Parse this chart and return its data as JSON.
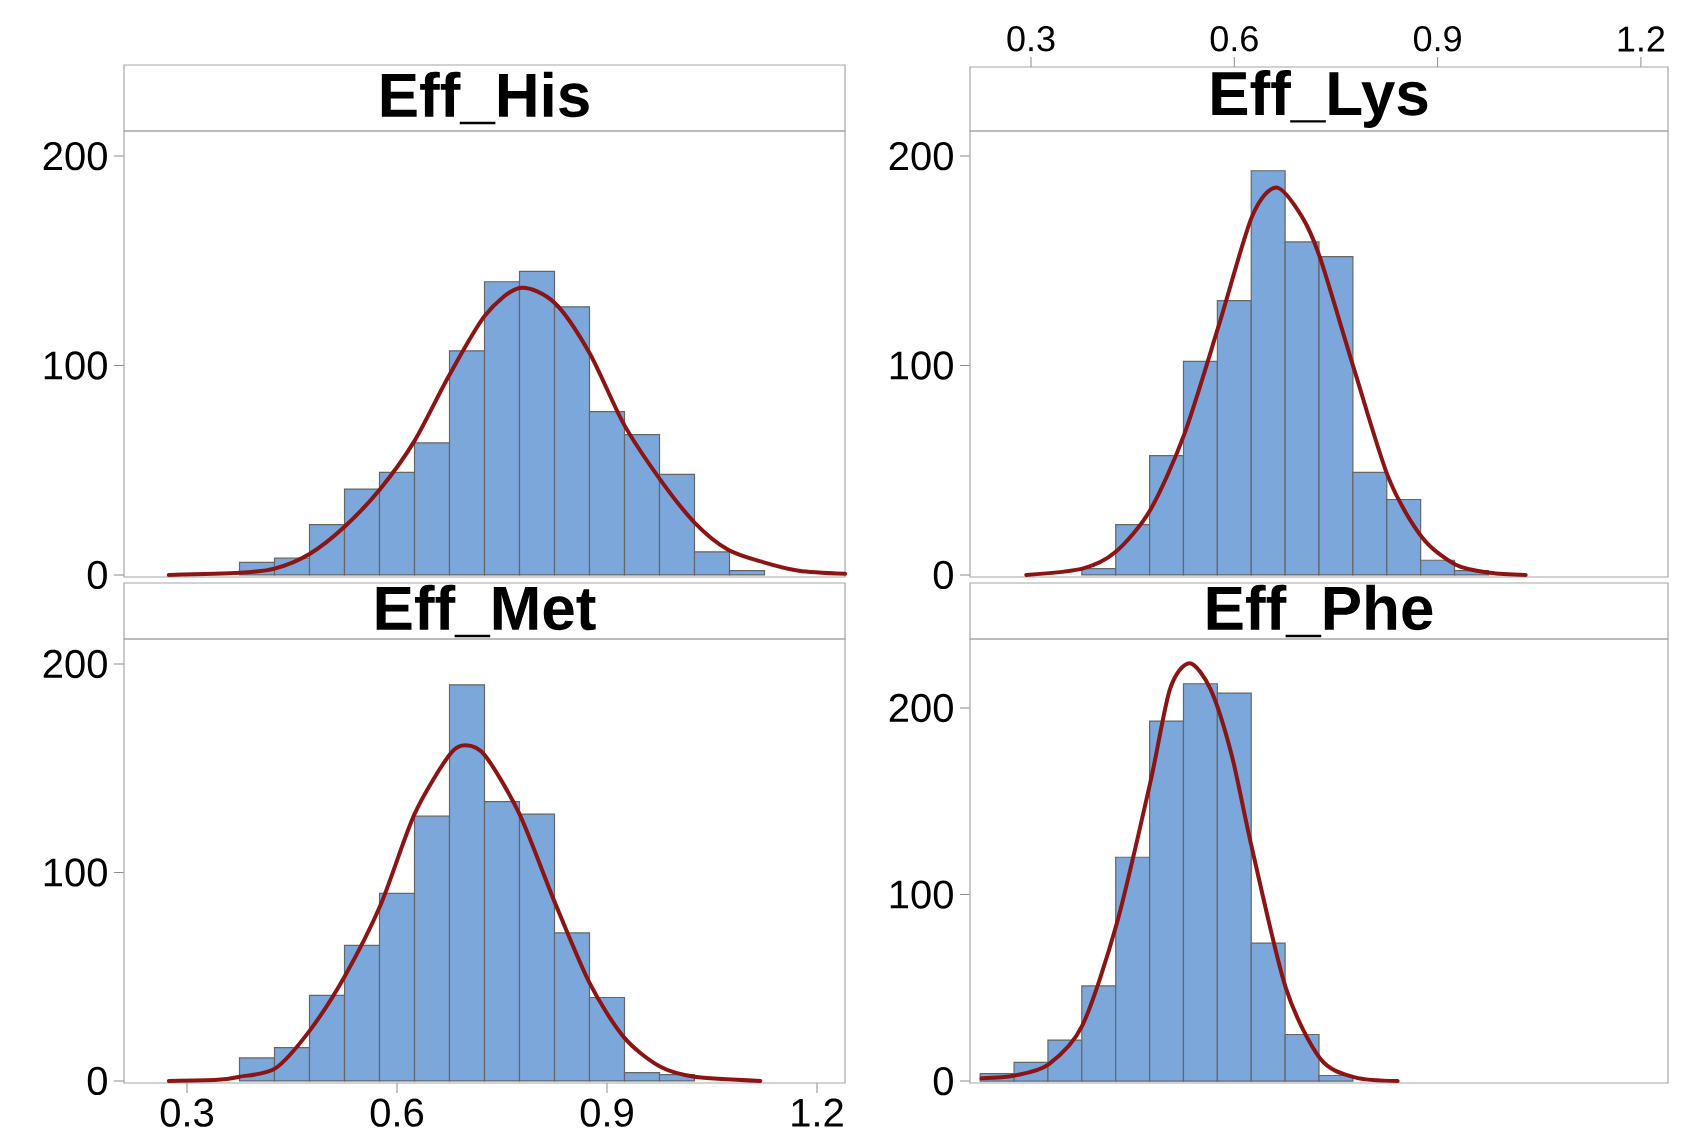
{
  "chart_data": [
    {
      "type": "histogram",
      "title": "Eff_His",
      "color": "#7ba7db",
      "tick_labels": "y",
      "bins": [
        0.375,
        0.425,
        0.475,
        0.525,
        0.575,
        0.625,
        0.675,
        0.725,
        0.775,
        0.825,
        0.875,
        0.925,
        0.975,
        1.025,
        1.075,
        1.125
      ],
      "values": [
        6,
        8,
        24,
        41,
        49,
        63,
        107,
        140,
        145,
        128,
        78,
        67,
        48,
        11,
        2
      ],
      "series": [
        {
          "type": "line",
          "color": "#8b1515",
          "x": [
            0.274,
            0.375,
            0.425,
            0.475,
            0.525,
            0.576,
            0.625,
            0.674,
            0.726,
            0.775,
            0.825,
            0.875,
            0.924,
            0.975,
            1.025,
            1.073,
            1.124,
            1.174,
            1.24
          ],
          "values": [
            0,
            1,
            3,
            10,
            23,
            41,
            64,
            95,
            124,
            137,
            130,
            106,
            72,
            46,
            25,
            12,
            6,
            2,
            0.5
          ]
        }
      ],
      "xlim": [
        0.21,
        1.24
      ],
      "ylim": [
        -1,
        212
      ],
      "yticks": [
        0,
        100,
        200
      ]
    },
    {
      "type": "histogram",
      "title": "Eff_Lys",
      "color": "#7ba7db",
      "bins": [
        0.375,
        0.425,
        0.475,
        0.525,
        0.575,
        0.625,
        0.675,
        0.725,
        0.775,
        0.825,
        0.875,
        0.925,
        0.975
      ],
      "values": [
        3,
        24,
        57,
        102,
        131,
        193,
        159,
        152,
        49,
        36,
        7,
        2
      ],
      "series": [
        {
          "type": "line",
          "color": "#8b1515",
          "x": [
            0.293,
            0.376,
            0.425,
            0.476,
            0.526,
            0.577,
            0.626,
            0.662,
            0.7,
            0.727,
            0.777,
            0.828,
            0.877,
            0.926,
            0.977,
            1.03
          ],
          "values": [
            0,
            3,
            11,
            31,
            67,
            119,
            171,
            185,
            171,
            151,
            98,
            46,
            18,
            5,
            1,
            0
          ]
        }
      ],
      "xlim": [
        0.21,
        1.24
      ],
      "x2lim": [
        0.21,
        1.24
      ],
      "x2ticks": [
        0.3,
        0.6,
        0.9,
        1.2
      ],
      "ylim": [
        -1,
        212
      ],
      "yticks": [
        0,
        100,
        200
      ]
    },
    {
      "type": "histogram",
      "title": "Eff_Met",
      "color": "#7ba7db",
      "bins": [
        0.375,
        0.425,
        0.475,
        0.525,
        0.575,
        0.625,
        0.675,
        0.725,
        0.775,
        0.825,
        0.875,
        0.925,
        0.975,
        1.025
      ],
      "values": [
        11,
        16,
        41,
        65,
        90,
        127,
        190,
        134,
        128,
        71,
        40,
        4,
        3
      ],
      "series": [
        {
          "type": "line",
          "color": "#8b1515",
          "x": [
            0.274,
            0.344,
            0.375,
            0.426,
            0.475,
            0.525,
            0.576,
            0.625,
            0.674,
            0.698,
            0.726,
            0.775,
            0.825,
            0.875,
            0.924,
            0.975,
            1.025,
            1.119
          ],
          "values": [
            0,
            0.5,
            2,
            6,
            24,
            50,
            84,
            128,
            156,
            161,
            156,
            128,
            86,
            47,
            21,
            7,
            2,
            0
          ]
        }
      ],
      "xlim": [
        0.21,
        1.24
      ],
      "xticks": [
        0.3,
        0.6,
        0.9,
        1.2
      ],
      "ylim": [
        -1,
        212
      ],
      "yticks": [
        0,
        100,
        200
      ]
    },
    {
      "type": "histogram",
      "title": "Eff_Phe",
      "color": "#7ba7db",
      "tick_labels": "y",
      "bins": [
        0.225,
        0.275,
        0.325,
        0.375,
        0.425,
        0.475,
        0.525,
        0.575,
        0.625,
        0.675,
        0.725,
        0.775
      ],
      "values": [
        4,
        10,
        22,
        51,
        120,
        193,
        213,
        208,
        74,
        25,
        3
      ],
      "series": [
        {
          "type": "line",
          "color": "#8b1515",
          "x": [
            0.227,
            0.276,
            0.326,
            0.376,
            0.427,
            0.476,
            0.505,
            0.534,
            0.565,
            0.596,
            0.626,
            0.676,
            0.727,
            0.778,
            0.841
          ],
          "values": [
            1.5,
            3,
            9,
            30,
            85,
            160,
            210,
            224,
            210,
            175,
            125,
            50,
            12,
            2,
            0
          ]
        }
      ],
      "xlim": [
        0.21,
        1.24
      ],
      "ylim": [
        -1,
        237
      ],
      "yticks": [
        0,
        100,
        200
      ]
    }
  ]
}
